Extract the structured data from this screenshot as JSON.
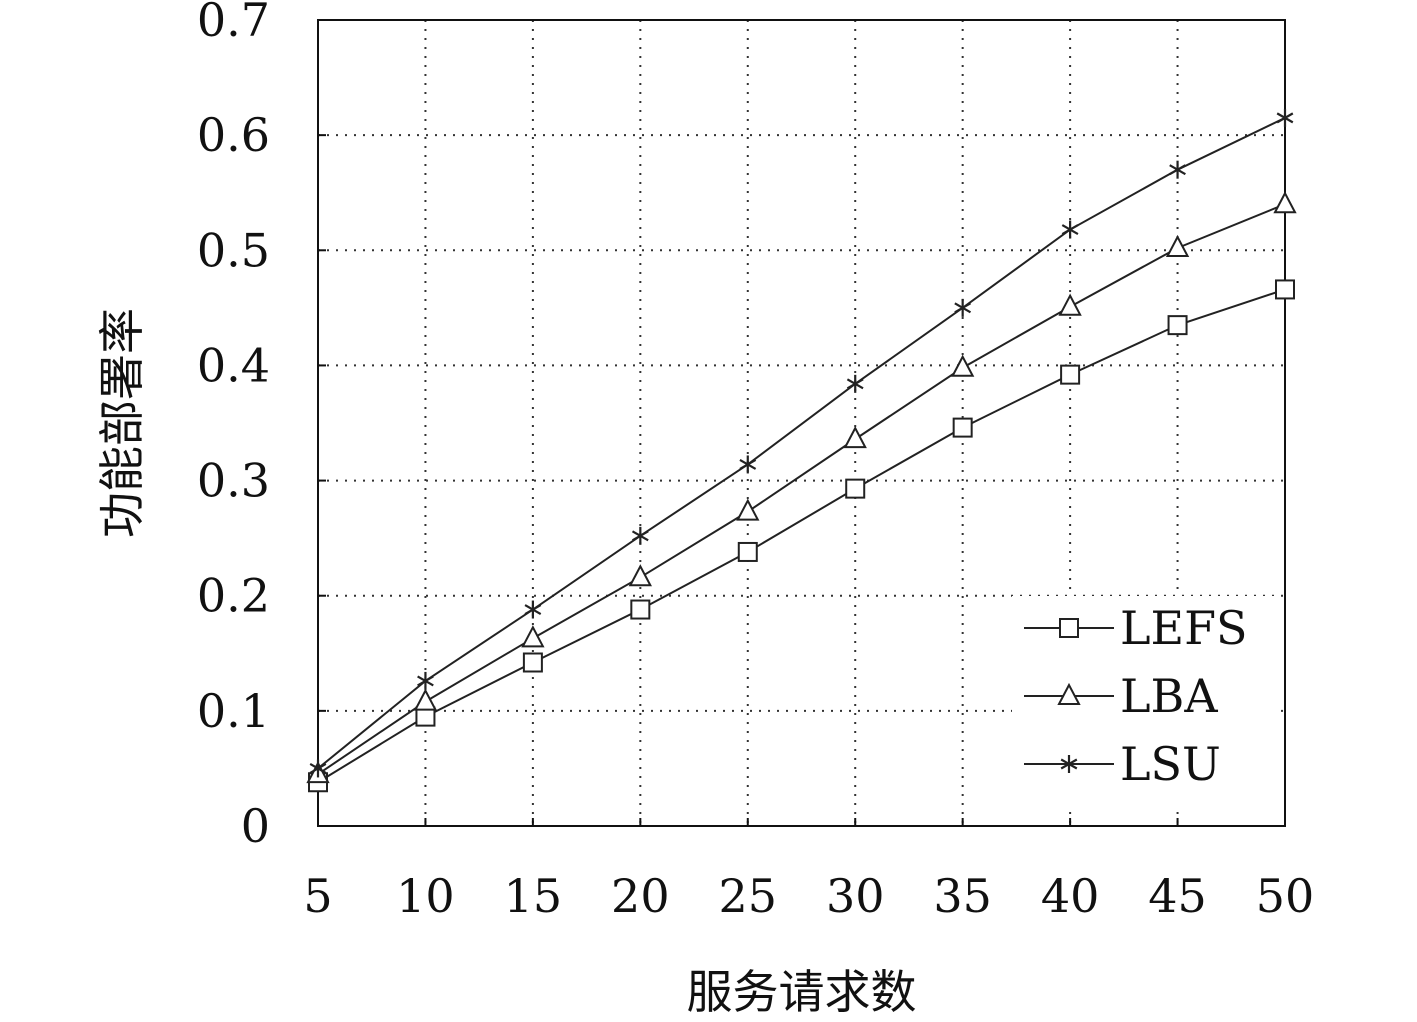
{
  "chart_data": {
    "type": "line",
    "title": "",
    "xlabel": "服务请求数",
    "ylabel": "功能部署率",
    "x": [
      5,
      10,
      15,
      20,
      25,
      30,
      35,
      40,
      45,
      50
    ],
    "xlim": [
      5,
      50
    ],
    "ylim": [
      0,
      0.7
    ],
    "xticks": [
      "5",
      "10",
      "15",
      "20",
      "25",
      "30",
      "35",
      "40",
      "45",
      "50"
    ],
    "yticks": [
      "0",
      "0.1",
      "0.2",
      "0.3",
      "0.4",
      "0.5",
      "0.6",
      "0.7"
    ],
    "grid": true,
    "legend_position": "lower-right",
    "series": [
      {
        "name": "LEFS",
        "marker": "square",
        "color": "#222222",
        "values": [
          0.038,
          0.095,
          0.142,
          0.188,
          0.238,
          0.293,
          0.346,
          0.392,
          0.435,
          0.466
        ]
      },
      {
        "name": "LBA",
        "marker": "triangle",
        "color": "#222222",
        "values": [
          0.045,
          0.108,
          0.163,
          0.216,
          0.273,
          0.336,
          0.398,
          0.451,
          0.502,
          0.54
        ]
      },
      {
        "name": "LSU",
        "marker": "star",
        "color": "#222222",
        "values": [
          0.05,
          0.126,
          0.188,
          0.252,
          0.314,
          0.384,
          0.45,
          0.518,
          0.57,
          0.615
        ]
      }
    ]
  }
}
